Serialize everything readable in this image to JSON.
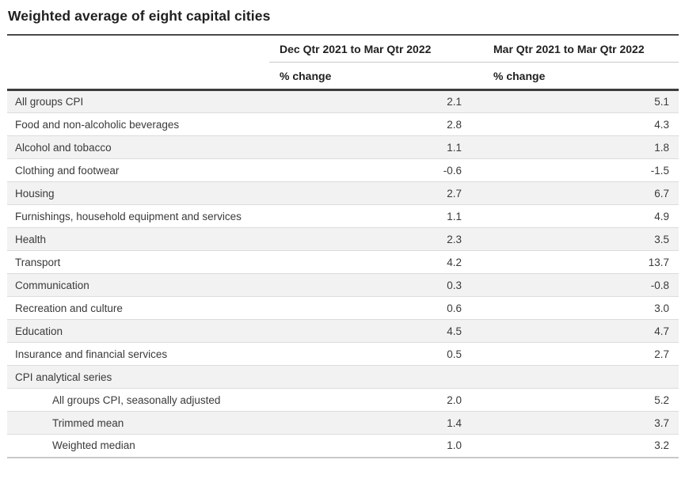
{
  "page": {
    "title": "Weighted average of eight capital cities"
  },
  "table": {
    "column_headers": [
      "Dec Qtr 2021 to Mar Qtr 2022",
      "Mar Qtr 2021 to Mar Qtr 2022"
    ],
    "unit_row": [
      "% change",
      "% change"
    ],
    "rows": [
      {
        "label": "All groups CPI",
        "values": [
          "2.1",
          "5.1"
        ],
        "indent": false
      },
      {
        "label": "Food and non-alcoholic beverages",
        "values": [
          "2.8",
          "4.3"
        ],
        "indent": false
      },
      {
        "label": "Alcohol and tobacco",
        "values": [
          "1.1",
          "1.8"
        ],
        "indent": false
      },
      {
        "label": "Clothing and footwear",
        "values": [
          "-0.6",
          "-1.5"
        ],
        "indent": false
      },
      {
        "label": "Housing",
        "values": [
          "2.7",
          "6.7"
        ],
        "indent": false
      },
      {
        "label": "Furnishings, household equipment and services",
        "values": [
          "1.1",
          "4.9"
        ],
        "indent": false
      },
      {
        "label": "Health",
        "values": [
          "2.3",
          "3.5"
        ],
        "indent": false
      },
      {
        "label": "Transport",
        "values": [
          "4.2",
          "13.7"
        ],
        "indent": false
      },
      {
        "label": "Communication",
        "values": [
          "0.3",
          "-0.8"
        ],
        "indent": false
      },
      {
        "label": "Recreation and culture",
        "values": [
          "0.6",
          "3.0"
        ],
        "indent": false
      },
      {
        "label": "Education",
        "values": [
          "4.5",
          "4.7"
        ],
        "indent": false
      },
      {
        "label": "Insurance and financial services",
        "values": [
          "0.5",
          "2.7"
        ],
        "indent": false
      },
      {
        "label": "CPI analytical series",
        "values": [
          "",
          ""
        ],
        "indent": false
      },
      {
        "label": "All groups CPI, seasonally adjusted",
        "values": [
          "2.0",
          "5.2"
        ],
        "indent": true
      },
      {
        "label": "Trimmed mean",
        "values": [
          "1.4",
          "3.7"
        ],
        "indent": true
      },
      {
        "label": "Weighted median",
        "values": [
          "1.0",
          "3.2"
        ],
        "indent": true
      }
    ]
  },
  "colors": {
    "row_alt_bg": "#f2f2f2",
    "heavy_rule": "#3d3d3d",
    "title_rule": "#4a4a4a",
    "light_rule": "#c9c9c9",
    "row_separator": "#dcdcdc",
    "text_primary": "#1f1f1f",
    "text_body": "#3a3a3a",
    "background": "#ffffff"
  },
  "chart_data": {
    "type": "table",
    "title": "Weighted average of eight capital cities",
    "categories": [
      "All groups CPI",
      "Food and non-alcoholic beverages",
      "Alcohol and tobacco",
      "Clothing and footwear",
      "Housing",
      "Furnishings, household equipment and services",
      "Health",
      "Transport",
      "Communication",
      "Recreation and culture",
      "Education",
      "Insurance and financial services",
      "CPI analytical series",
      "All groups CPI, seasonally adjusted",
      "Trimmed mean",
      "Weighted median"
    ],
    "series": [
      {
        "name": "Dec Qtr 2021 to Mar Qtr 2022",
        "unit": "% change",
        "values": [
          2.1,
          2.8,
          1.1,
          -0.6,
          2.7,
          1.1,
          2.3,
          4.2,
          0.3,
          0.6,
          4.5,
          0.5,
          null,
          2.0,
          1.4,
          1.0
        ]
      },
      {
        "name": "Mar Qtr 2021 to Mar Qtr 2022",
        "unit": "% change",
        "values": [
          5.1,
          4.3,
          1.8,
          -1.5,
          6.7,
          4.9,
          3.5,
          13.7,
          -0.8,
          3.0,
          4.7,
          2.7,
          null,
          5.2,
          3.7,
          3.2
        ]
      }
    ],
    "layout": {
      "indented_rows": [
        13,
        14,
        15
      ],
      "zebra_striping": true
    }
  }
}
